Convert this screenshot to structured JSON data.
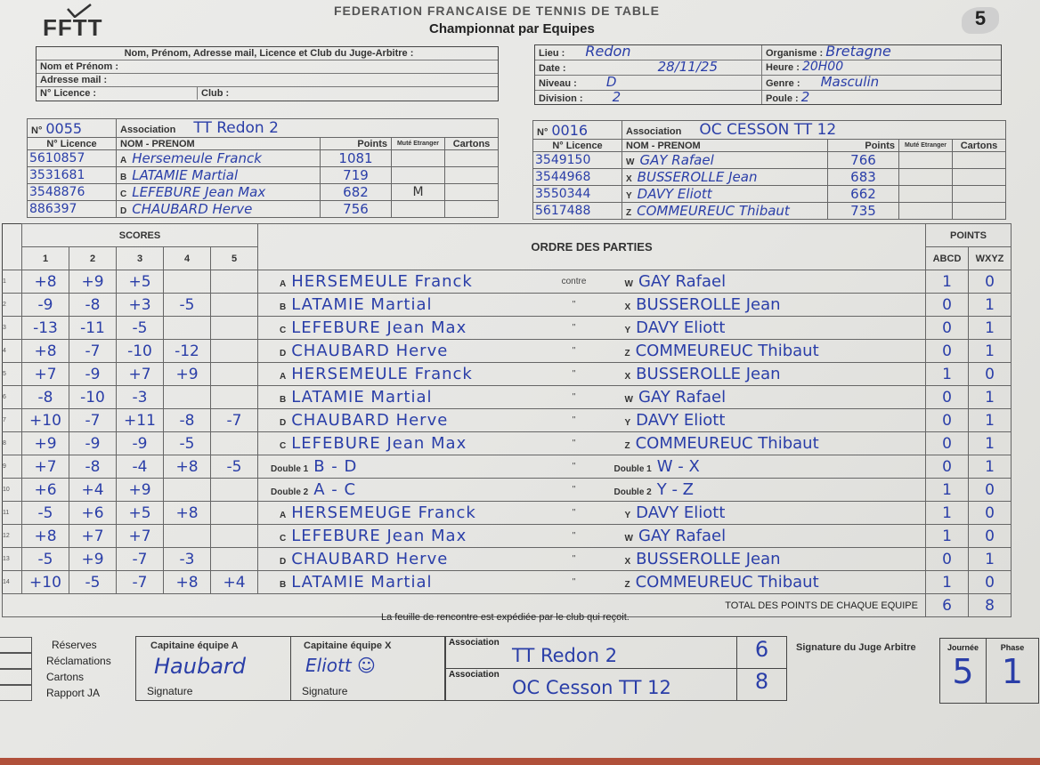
{
  "header": {
    "logo": "FFTT",
    "federation": "FEDERATION FRANCAISE DE TENNIS DE TABLE",
    "title": "Championnat par Equipes",
    "badge": "5"
  },
  "judge": {
    "heading": "Nom, Prénom, Adresse mail, Licence et Club du Juge-Arbitre :",
    "name_label": "Nom et Prénom :",
    "email_label": "Adresse mail :",
    "licence_label": "N° Licence :",
    "club_label": "Club :"
  },
  "match_info": {
    "lieu_label": "Lieu :",
    "lieu": "Redon",
    "date_label": "Date :",
    "date": "28/11/25",
    "niveau_label": "Niveau :",
    "niveau": "D",
    "division_label": "Division :",
    "division": "2",
    "organisme_label": "Organisme :",
    "organisme": "Bretagne",
    "heure_label": "Heure :",
    "heure": "20H00",
    "genre_label": "Genre :",
    "genre": "Masculin",
    "poule_label": "Poule :",
    "poule": "2"
  },
  "team_a": {
    "no_label": "N°",
    "no": "0055",
    "assoc_label": "Association",
    "assoc": "TT Redon 2",
    "col_licence": "N° Licence",
    "col_name": "NOM - PRENOM",
    "col_points": "Points",
    "col_mute": "Muté Etranger",
    "col_cartons": "Cartons",
    "players": [
      {
        "licence": "5610857",
        "letter": "A",
        "name": "Hersemeule Franck",
        "points": "1081",
        "mute": ""
      },
      {
        "licence": "3531681",
        "letter": "B",
        "name": "LATAMIE Martial",
        "points": "719",
        "mute": ""
      },
      {
        "licence": "3548876",
        "letter": "C",
        "name": "LEFEBURE Jean Max",
        "points": "682",
        "mute": "M"
      },
      {
        "licence": "886397",
        "letter": "D",
        "name": "CHAUBARD Herve",
        "points": "756",
        "mute": ""
      }
    ]
  },
  "team_x": {
    "no_label": "N°",
    "no": "0016",
    "assoc_label": "Association",
    "assoc": "OC CESSON TT 12",
    "col_licence": "N° Licence",
    "col_name": "NOM - PRENOM",
    "col_points": "Points",
    "col_mute": "Muté Etranger",
    "col_cartons": "Cartons",
    "players": [
      {
        "licence": "3549150",
        "letter": "W",
        "name": "GAY Rafael",
        "points": "766",
        "mute": ""
      },
      {
        "licence": "3544968",
        "letter": "X",
        "name": "BUSSEROLLE Jean",
        "points": "683",
        "mute": ""
      },
      {
        "licence": "3550344",
        "letter": "Y",
        "name": "DAVY Eliott",
        "points": "662",
        "mute": ""
      },
      {
        "licence": "5617488",
        "letter": "Z",
        "name": "COMMEUREUC Thibaut",
        "points": "735",
        "mute": ""
      }
    ]
  },
  "games": {
    "scores_label": "SCORES",
    "set_labels": [
      "1",
      "2",
      "3",
      "4",
      "5"
    ],
    "order_label": "ORDRE DES PARTIES",
    "points_label": "POINTS",
    "col_abcd": "ABCD",
    "col_wxyz": "WXYZ",
    "total_label": "TOTAL DES POINTS DE CHAQUE EQUIPE",
    "total_abcd": "6",
    "total_wxyz": "8",
    "rows": [
      {
        "n": "1",
        "sets": [
          "+8",
          "+9",
          "+5",
          "",
          ""
        ],
        "a_letter": "A",
        "a": "HERSEMEULE Franck",
        "vs": "contre",
        "x_letter": "W",
        "x": "GAY Rafael",
        "pa": "1",
        "px": "0"
      },
      {
        "n": "2",
        "sets": [
          "-9",
          "-8",
          "+3",
          "-5",
          ""
        ],
        "a_letter": "B",
        "a": "LATAMIE Martial",
        "vs": "\"",
        "x_letter": "X",
        "x": "BUSSEROLLE Jean",
        "pa": "0",
        "px": "1"
      },
      {
        "n": "3",
        "sets": [
          "-13",
          "-11",
          "-5",
          "",
          ""
        ],
        "a_letter": "C",
        "a": "LEFEBURE Jean Max",
        "vs": "\"",
        "x_letter": "Y",
        "x": "DAVY Eliott",
        "pa": "0",
        "px": "1"
      },
      {
        "n": "4",
        "sets": [
          "+8",
          "-7",
          "-10",
          "-12",
          ""
        ],
        "a_letter": "D",
        "a": "CHAUBARD Herve",
        "vs": "\"",
        "x_letter": "Z",
        "x": "COMMEUREUC Thibaut",
        "pa": "0",
        "px": "1"
      },
      {
        "n": "5",
        "sets": [
          "+7",
          "-9",
          "+7",
          "+9",
          ""
        ],
        "a_letter": "A",
        "a": "HERSEMEULE Franck",
        "vs": "\"",
        "x_letter": "X",
        "x": "BUSSEROLLE Jean",
        "pa": "1",
        "px": "0"
      },
      {
        "n": "6",
        "sets": [
          "-8",
          "-10",
          "-3",
          "",
          ""
        ],
        "a_letter": "B",
        "a": "LATAMIE Martial",
        "vs": "\"",
        "x_letter": "W",
        "x": "GAY Rafael",
        "pa": "0",
        "px": "1"
      },
      {
        "n": "7",
        "sets": [
          "+10",
          "-7",
          "+11",
          "-8",
          "-7"
        ],
        "a_letter": "D",
        "a": "CHAUBARD Herve",
        "vs": "\"",
        "x_letter": "Y",
        "x": "DAVY Eliott",
        "pa": "0",
        "px": "1"
      },
      {
        "n": "8",
        "sets": [
          "+9",
          "-9",
          "-9",
          "-5",
          ""
        ],
        "a_letter": "C",
        "a": "LEFEBURE Jean Max",
        "vs": "\"",
        "x_letter": "Z",
        "x": "COMMEUREUC Thibaut",
        "pa": "0",
        "px": "1"
      },
      {
        "n": "9",
        "sets": [
          "+7",
          "-8",
          "-4",
          "+8",
          "-5"
        ],
        "a_letter": "Double 1",
        "a": "B - D",
        "vs": "\"",
        "x_letter": "Double 1",
        "x": "W - X",
        "pa": "0",
        "px": "1"
      },
      {
        "n": "10",
        "sets": [
          "+6",
          "+4",
          "+9",
          "",
          ""
        ],
        "a_letter": "Double 2",
        "a": "A - C",
        "vs": "\"",
        "x_letter": "Double 2",
        "x": "Y - Z",
        "pa": "1",
        "px": "0"
      },
      {
        "n": "11",
        "sets": [
          "-5",
          "+6",
          "+5",
          "+8",
          ""
        ],
        "a_letter": "A",
        "a": "HERSEMEUGE Franck",
        "vs": "\"",
        "x_letter": "Y",
        "x": "DAVY Eliott",
        "pa": "1",
        "px": "0"
      },
      {
        "n": "12",
        "sets": [
          "+8",
          "+7",
          "+7",
          "",
          ""
        ],
        "a_letter": "C",
        "a": "LEFEBURE Jean Max",
        "vs": "\"",
        "x_letter": "W",
        "x": "GAY Rafael",
        "pa": "1",
        "px": "0"
      },
      {
        "n": "13",
        "sets": [
          "-5",
          "+9",
          "-7",
          "-3",
          ""
        ],
        "a_letter": "D",
        "a": "CHAUBARD Herve",
        "vs": "\"",
        "x_letter": "X",
        "x": "BUSSEROLLE Jean",
        "pa": "0",
        "px": "1"
      },
      {
        "n": "14",
        "sets": [
          "+10",
          "-5",
          "-7",
          "+8",
          "+4"
        ],
        "a_letter": "B",
        "a": "LATAMIE Martial",
        "vs": "\"",
        "x_letter": "Z",
        "x": "COMMEUREUC Thibaut",
        "pa": "1",
        "px": "0"
      }
    ]
  },
  "footer": {
    "notice": "La feuille de rencontre est expédiée par le club qui reçoit.",
    "checks": [
      "Réserves",
      "Réclamations",
      "Cartons",
      "Rapport JA"
    ],
    "captain_a_label": "Capitaine équipe A",
    "captain_a_sig": "Haubard",
    "captain_x_label": "Capitaine équipe X",
    "captain_x_sig": "Eliott ☺",
    "signature_label": "Signature",
    "assoc_label": "Association",
    "assoc_a": "TT Redon 2",
    "score_a": "6",
    "assoc_x": "OC Cesson TT 12",
    "score_x": "8",
    "judge_sig_label": "Signature du Juge Arbitre",
    "journee_label": "Journée",
    "journee": "5",
    "phase_label": "Phase",
    "phase": "1"
  },
  "colors": {
    "ink": "#2a3ea8",
    "paper": "#e8e8e5"
  }
}
